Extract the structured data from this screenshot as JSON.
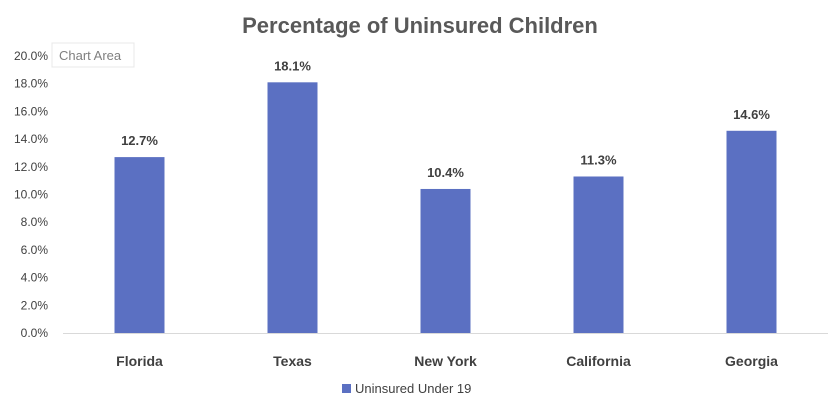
{
  "tooltip": "Chart Area",
  "chart_data": {
    "type": "bar",
    "title": "Percentage of Uninsured Children",
    "categories": [
      "Florida",
      "Texas",
      "New York",
      "California",
      "Georgia"
    ],
    "series": [
      {
        "name": "Uninsured Under 19",
        "values": [
          12.7,
          18.1,
          10.4,
          11.3,
          14.6
        ],
        "color": "#5b70c2"
      }
    ],
    "data_labels": [
      "12.7%",
      "18.1%",
      "10.4%",
      "11.3%",
      "14.6%"
    ],
    "ylim": [
      0,
      20
    ],
    "yticks": [
      "0.0%",
      "2.0%",
      "4.0%",
      "6.0%",
      "8.0%",
      "10.0%",
      "12.0%",
      "14.0%",
      "16.0%",
      "18.0%",
      "20.0%"
    ],
    "ytick_values": [
      0,
      2,
      4,
      6,
      8,
      10,
      12,
      14,
      16,
      18,
      20
    ],
    "xlabel": "",
    "ylabel": "",
    "grid": false,
    "legend_position": "bottom"
  }
}
